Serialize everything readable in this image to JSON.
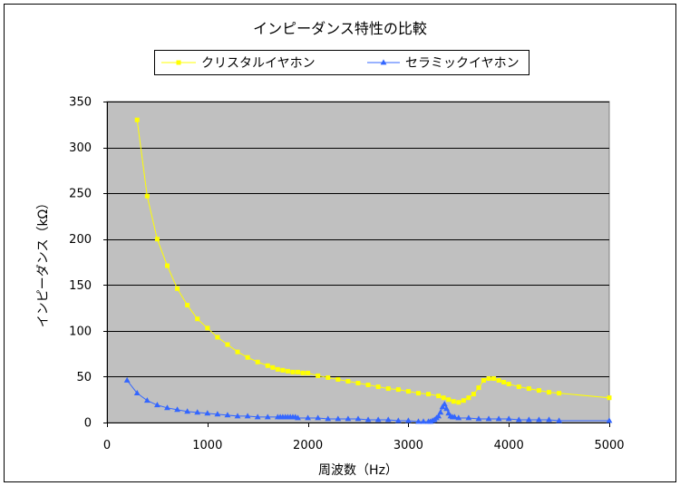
{
  "chart_data": {
    "type": "line",
    "title": "インピーダンス特性の比較",
    "xlabel": "周波数（Hz）",
    "ylabel": "インピーダンス（kΩ）",
    "xlim": [
      0,
      5000
    ],
    "ylim": [
      0,
      350
    ],
    "xticks": [
      0,
      1000,
      2000,
      3000,
      4000,
      5000
    ],
    "yticks": [
      0,
      50,
      100,
      150,
      200,
      250,
      300,
      350
    ],
    "grid": "horizontal",
    "legend": "top",
    "series": [
      {
        "name": "クリスタルイヤホン",
        "color": "#FFFF00",
        "marker": "square",
        "x": [
          300,
          400,
          500,
          600,
          700,
          800,
          900,
          1000,
          1100,
          1200,
          1300,
          1400,
          1500,
          1600,
          1650,
          1700,
          1750,
          1800,
          1850,
          1900,
          1950,
          2000,
          2100,
          2200,
          2300,
          2400,
          2500,
          2600,
          2700,
          2800,
          2900,
          3000,
          3100,
          3200,
          3300,
          3350,
          3400,
          3450,
          3500,
          3550,
          3600,
          3650,
          3700,
          3750,
          3800,
          3850,
          3900,
          3950,
          4000,
          4100,
          4200,
          4300,
          4400,
          4500,
          5000
        ],
        "y": [
          330,
          247,
          200,
          171,
          146,
          128,
          113,
          103,
          93,
          85,
          77,
          71,
          66,
          62,
          60,
          58,
          57,
          56,
          55,
          55,
          54,
          54,
          51,
          49,
          47,
          45,
          43,
          41,
          39,
          37,
          36,
          34,
          32,
          31,
          29,
          27,
          25,
          23,
          22,
          24,
          27,
          31,
          38,
          46,
          48,
          48,
          46,
          44,
          42,
          39,
          37,
          35,
          33,
          32,
          27
        ]
      },
      {
        "name": "セラミックイヤホン",
        "color": "#3366FF",
        "marker": "triangle",
        "x": [
          200,
          300,
          400,
          500,
          600,
          700,
          800,
          900,
          1000,
          1100,
          1200,
          1300,
          1400,
          1500,
          1600,
          1700,
          1725,
          1750,
          1775,
          1800,
          1825,
          1850,
          1875,
          1900,
          2000,
          2100,
          2200,
          2300,
          2400,
          2500,
          2600,
          2700,
          2800,
          2900,
          3000,
          3100,
          3150,
          3200,
          3220,
          3240,
          3260,
          3280,
          3300,
          3320,
          3340,
          3360,
          3380,
          3400,
          3420,
          3440,
          3460,
          3500,
          3600,
          3700,
          3800,
          3900,
          4000,
          4100,
          4200,
          4300,
          4400,
          4500,
          5000
        ],
        "y": [
          46,
          32,
          24,
          19,
          16,
          14,
          12,
          11,
          10,
          9,
          8,
          7,
          7,
          6,
          6,
          6,
          6,
          6,
          6,
          6,
          6,
          6,
          6,
          5,
          5,
          5,
          4,
          4,
          4,
          4,
          3,
          3,
          3,
          2,
          2,
          1,
          1,
          1,
          1,
          2,
          3,
          5,
          7,
          11,
          17,
          20,
          15,
          10,
          7,
          6,
          6,
          5,
          5,
          4,
          4,
          4,
          4,
          3,
          3,
          3,
          3,
          2,
          2
        ]
      }
    ]
  },
  "colors": {
    "plot_background": "#C0C0C0",
    "gridline": "#000000",
    "axis": "#000000",
    "plot_border": "#808080"
  }
}
